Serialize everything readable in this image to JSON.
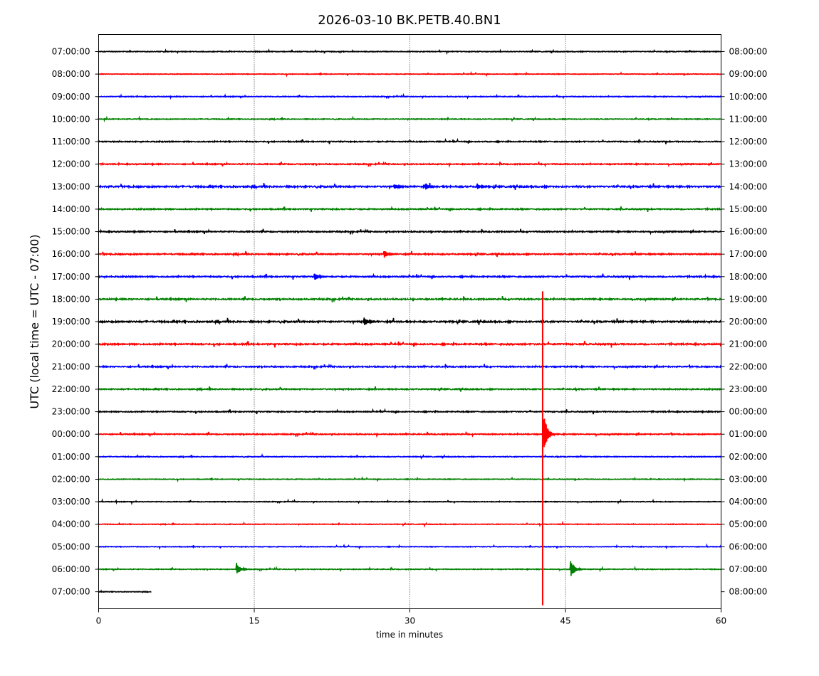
{
  "chart_data": {
    "type": "line",
    "title": "2026-03-10 BK.PETB.40.BN1",
    "xlabel": "time in minutes",
    "ylabel": "UTC (local time = UTC - 07:00)",
    "xlim": [
      0,
      60
    ],
    "xticks": [
      0,
      15,
      30,
      45,
      60
    ],
    "vertical_gridlines": [
      15,
      30,
      45
    ],
    "grid_style": "dotted",
    "trace_colors": [
      "#000000",
      "#ff0000",
      "#0000ff",
      "#008000"
    ],
    "left_labels": [
      "07:00:00",
      "08:00:00",
      "09:00:00",
      "10:00:00",
      "11:00:00",
      "12:00:00",
      "13:00:00",
      "14:00:00",
      "15:00:00",
      "16:00:00",
      "17:00:00",
      "18:00:00",
      "19:00:00",
      "20:00:00",
      "21:00:00",
      "22:00:00",
      "23:00:00",
      "00:00:00",
      "01:00:00",
      "02:00:00",
      "03:00:00",
      "04:00:00",
      "05:00:00",
      "06:00:00",
      "07:00:00"
    ],
    "right_labels": [
      "08:00:00",
      "09:00:00",
      "10:00:00",
      "11:00:00",
      "12:00:00",
      "13:00:00",
      "14:00:00",
      "15:00:00",
      "16:00:00",
      "17:00:00",
      "18:00:00",
      "19:00:00",
      "20:00:00",
      "21:00:00",
      "22:00:00",
      "23:00:00",
      "00:00:00",
      "01:00:00",
      "02:00:00",
      "03:00:00",
      "04:00:00",
      "05:00:00",
      "06:00:00",
      "07:00:00",
      "08:00:00"
    ],
    "trace_end_minutes": [
      60,
      60,
      60,
      60,
      60,
      60,
      60,
      60,
      60,
      60,
      60,
      60,
      60,
      60,
      60,
      60,
      60,
      60,
      60,
      60,
      60,
      60,
      60,
      60,
      5.1
    ],
    "trace_noise_level": [
      0.6,
      0.5,
      0.6,
      0.6,
      0.8,
      0.8,
      1.2,
      0.9,
      0.9,
      1.0,
      1.0,
      1.0,
      1.2,
      1.1,
      0.9,
      0.9,
      0.8,
      0.8,
      0.6,
      0.5,
      0.5,
      0.5,
      0.5,
      0.6,
      0.5
    ],
    "events": [
      {
        "row": 11,
        "minute": 42.8,
        "label": "large earthquake",
        "color": "#ff0000",
        "amplitude_rows_up": 0.35,
        "amplitude_rows_down": 13.6
      },
      {
        "row": 17,
        "minute": 42.9,
        "label": "earthquake coda",
        "amplitude": 1.0
      },
      {
        "row": 23,
        "minute": 13.3,
        "label": "local event",
        "amplitude": 0.3
      },
      {
        "row": 23,
        "minute": 45.5,
        "label": "local event",
        "amplitude": 0.45
      },
      {
        "row": 12,
        "minute": 25.6,
        "label": "spike",
        "amplitude": 0.22
      },
      {
        "row": 9,
        "minute": 27.5,
        "label": "spike",
        "amplitude": 0.2
      },
      {
        "row": 10,
        "minute": 20.8,
        "label": "spike",
        "amplitude": 0.2
      },
      {
        "row": 6,
        "minute": 28.5,
        "label": "burst",
        "amplitude": 0.15
      },
      {
        "row": 6,
        "minute": 31.5,
        "label": "burst",
        "amplitude": 0.18
      },
      {
        "row": 6,
        "minute": 36.5,
        "label": "burst",
        "amplitude": 0.14
      }
    ]
  }
}
